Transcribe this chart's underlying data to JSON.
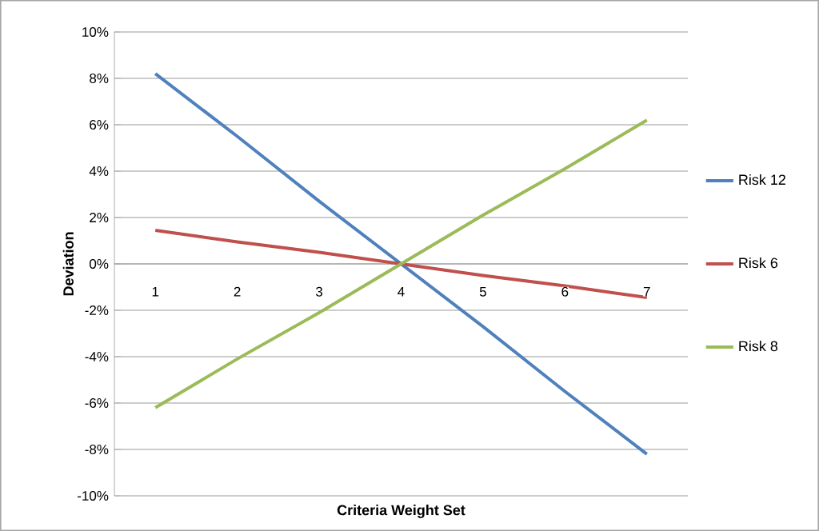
{
  "chart_data": {
    "type": "line",
    "xlabel": "Criteria Weight Set",
    "ylabel": "Deviation",
    "categories": [
      "1",
      "2",
      "3",
      "4",
      "5",
      "6",
      "7"
    ],
    "series": [
      {
        "name": "Risk 12",
        "color": "#4f81bd",
        "values": [
          8.2,
          5.5,
          2.7,
          0,
          -2.7,
          -5.5,
          -8.2
        ]
      },
      {
        "name": "Risk 6",
        "color": "#c0504d",
        "values": [
          1.45,
          0.95,
          0.5,
          0,
          -0.5,
          -0.95,
          -1.45
        ]
      },
      {
        "name": "Risk 8",
        "color": "#9bbb59",
        "values": [
          -6.2,
          -4.1,
          -2.1,
          0,
          2.1,
          4.1,
          6.2
        ]
      }
    ],
    "ylim": [
      -10,
      10
    ],
    "yticks": [
      {
        "value": -10,
        "label": "-10%"
      },
      {
        "value": -8,
        "label": "-8%"
      },
      {
        "value": -6,
        "label": "-6%"
      },
      {
        "value": -4,
        "label": "-4%"
      },
      {
        "value": -2,
        "label": "-2%"
      },
      {
        "value": 0,
        "label": "0%"
      },
      {
        "value": 2,
        "label": "2%"
      },
      {
        "value": 4,
        "label": "4%"
      },
      {
        "value": 6,
        "label": "6%"
      },
      {
        "value": 8,
        "label": "8%"
      },
      {
        "value": 10,
        "label": "10%"
      }
    ],
    "grid": "y",
    "legend": "right",
    "marker": "none",
    "line_style": "solid"
  }
}
